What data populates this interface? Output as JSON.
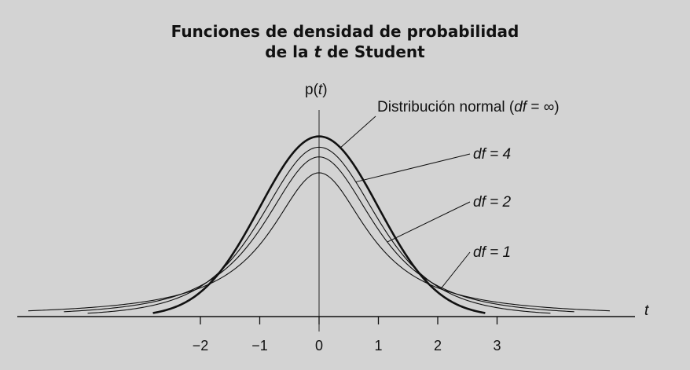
{
  "chart_data": {
    "type": "line",
    "title": {
      "line1": "Funciones de densidad de probabilidad",
      "line2_prefix": "de la ",
      "line2_var": "t",
      "line2_suffix": " de Student"
    },
    "ylabel": {
      "prefix": "p(",
      "var": "t",
      "suffix": ")"
    },
    "xlabel": "t",
    "x_ticks": [
      -2,
      -1,
      0,
      1,
      2,
      3
    ],
    "x_tick_labels": [
      "−2",
      "−1",
      "0",
      "1",
      "2",
      "3"
    ],
    "xlim": [
      -4.9,
      5.6
    ],
    "ylim": [
      0,
      0.4
    ],
    "grid": false,
    "series": [
      {
        "name": "df = ∞",
        "df": "inf",
        "x_range": [
          -2.8,
          2.8
        ],
        "emphasis": true
      },
      {
        "name": "df = 4",
        "df": 4,
        "x_range": [
          -3.9,
          3.9
        ]
      },
      {
        "name": "df = 2",
        "df": 2,
        "x_range": [
          -4.3,
          4.3
        ]
      },
      {
        "name": "df = 1",
        "df": 1,
        "x_range": [
          -4.9,
          4.9
        ]
      }
    ],
    "annotations": {
      "normal": {
        "text_prefix": "Distribución normal (",
        "var": "df",
        "text_suffix": " = ∞)"
      },
      "df4": {
        "var": "df",
        "text": " = 4"
      },
      "df2": {
        "var": "df",
        "text": " = 2"
      },
      "df1": {
        "var": "df",
        "text": " = 1"
      }
    },
    "colors": {
      "background": "#d3d3d3",
      "lines": "#111111"
    }
  }
}
